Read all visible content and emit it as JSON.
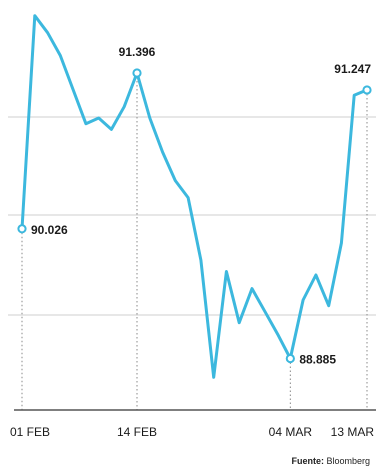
{
  "header_fragment": "",
  "source": {
    "label": "Fuente:",
    "name": "Bloomberg"
  },
  "colors": {
    "line": "#3cb8de",
    "text": "#1a1a1a",
    "grid": "#cfcfcf",
    "axis": "#555555",
    "callout": "#888888"
  },
  "chart_data": {
    "type": "line",
    "title": "",
    "xlabel": "",
    "ylabel": "",
    "x_tick_labels": [
      "01 FEB",
      "14 FEB",
      "04 MAR",
      "13 MAR"
    ],
    "x_tick_index": [
      0,
      9,
      21,
      27
    ],
    "ylim": [
      88.45,
      91.95
    ],
    "grid": "horizontal",
    "series": [
      {
        "values": [
          90.026,
          91.9,
          91.75,
          91.55,
          91.25,
          90.95,
          91.0,
          90.9,
          91.1,
          91.396,
          91.0,
          90.7,
          90.45,
          90.3,
          89.75,
          88.72,
          89.65,
          89.2,
          89.5,
          89.3,
          89.1,
          88.885,
          89.4,
          89.62,
          89.35,
          89.9,
          91.2,
          91.247
        ],
        "annotations": [
          {
            "index": 0,
            "label": "90.026",
            "position": "right"
          },
          {
            "index": 9,
            "label": "91.396",
            "position": "above"
          },
          {
            "index": 21,
            "label": "88.885",
            "position": "right"
          },
          {
            "index": 27,
            "label": "91.247",
            "position": "above"
          }
        ]
      }
    ]
  }
}
